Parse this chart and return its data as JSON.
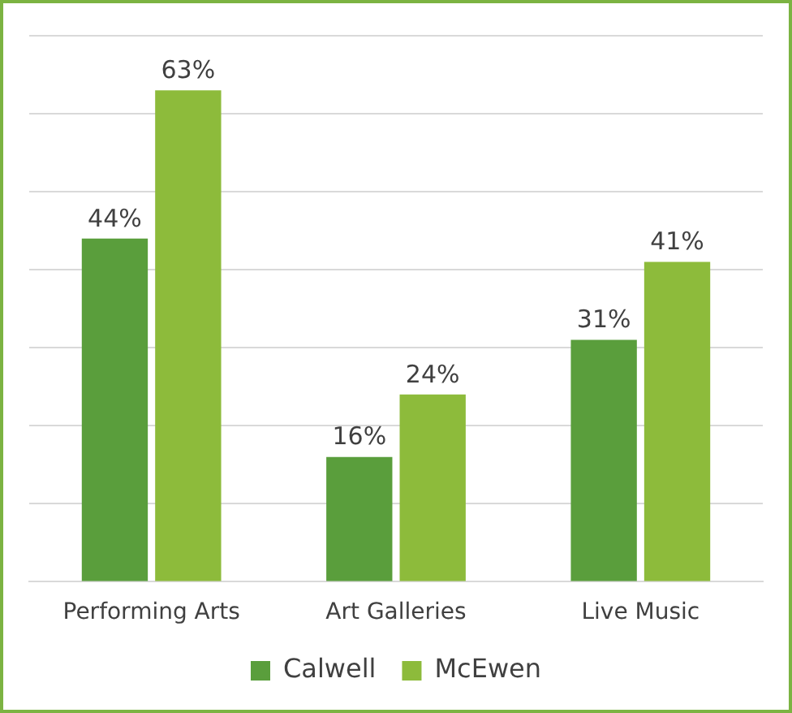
{
  "chart_data": {
    "type": "bar",
    "categories": [
      "Performing Arts",
      "Art Galleries",
      "Live Music"
    ],
    "series": [
      {
        "name": "Calwell",
        "color": "#5a9e3c",
        "values": [
          44,
          16,
          31
        ],
        "value_labels": [
          "44%",
          "16%",
          "31%"
        ]
      },
      {
        "name": "McEwen",
        "color": "#8dbb3b",
        "values": [
          63,
          24,
          41
        ],
        "value_labels": [
          "63%",
          "24%",
          "41%"
        ]
      }
    ],
    "ylim": [
      0,
      70
    ],
    "yticks": [
      {
        "value": 0,
        "label": null
      },
      {
        "value": 10,
        "label": null
      },
      {
        "value": 20,
        "label": null
      },
      {
        "value": 30,
        "label": null
      },
      {
        "value": 40,
        "label": null
      },
      {
        "value": 50,
        "label": null
      },
      {
        "value": 60,
        "label": null
      },
      {
        "value": 70,
        "label": null
      }
    ],
    "grid": "y",
    "legend": "bottom",
    "tick_labels": "x"
  }
}
